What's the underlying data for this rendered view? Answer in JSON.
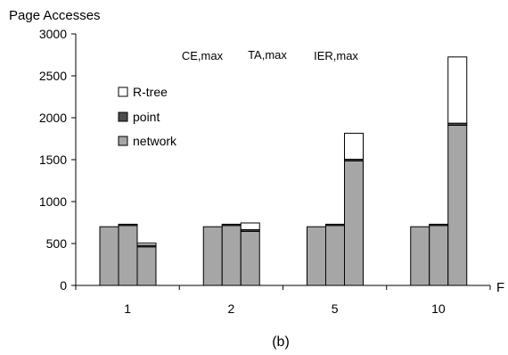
{
  "chart_data": {
    "type": "bar",
    "stacked": true,
    "ylabel": "Page Accesses",
    "xlabel": "F",
    "caption": "(b)",
    "ylim": [
      0,
      3000
    ],
    "yticks": [
      0,
      500,
      1000,
      1500,
      2000,
      2500,
      3000
    ],
    "categories": [
      "1",
      "2",
      "5",
      "10"
    ],
    "method_labels": [
      "CE,max",
      "TA,max",
      "IER,max"
    ],
    "legend": {
      "placement": "upper-left",
      "entries": [
        {
          "label": "R-tree",
          "color": "#ffffff"
        },
        {
          "label": "point",
          "color": "#4d4d4d"
        },
        {
          "label": "network",
          "color": "#a6a6a6"
        }
      ]
    },
    "groups": [
      {
        "category": "1",
        "bars": [
          {
            "method": "CE,max",
            "network": 700,
            "point": 0,
            "rtree": 0
          },
          {
            "method": "TA,max",
            "network": 715,
            "point": 15,
            "rtree": 0
          },
          {
            "method": "IER,max",
            "network": 460,
            "point": 20,
            "rtree": 25
          }
        ]
      },
      {
        "category": "2",
        "bars": [
          {
            "method": "CE,max",
            "network": 700,
            "point": 0,
            "rtree": 0
          },
          {
            "method": "TA,max",
            "network": 715,
            "point": 15,
            "rtree": 0
          },
          {
            "method": "IER,max",
            "network": 645,
            "point": 20,
            "rtree": 80
          }
        ]
      },
      {
        "category": "5",
        "bars": [
          {
            "method": "CE,max",
            "network": 700,
            "point": 0,
            "rtree": 0
          },
          {
            "method": "TA,max",
            "network": 715,
            "point": 15,
            "rtree": 0
          },
          {
            "method": "IER,max",
            "network": 1485,
            "point": 20,
            "rtree": 310
          }
        ]
      },
      {
        "category": "10",
        "bars": [
          {
            "method": "CE,max",
            "network": 700,
            "point": 0,
            "rtree": 0
          },
          {
            "method": "TA,max",
            "network": 715,
            "point": 15,
            "rtree": 0
          },
          {
            "method": "IER,max",
            "network": 1910,
            "point": 25,
            "rtree": 790
          }
        ]
      }
    ]
  }
}
